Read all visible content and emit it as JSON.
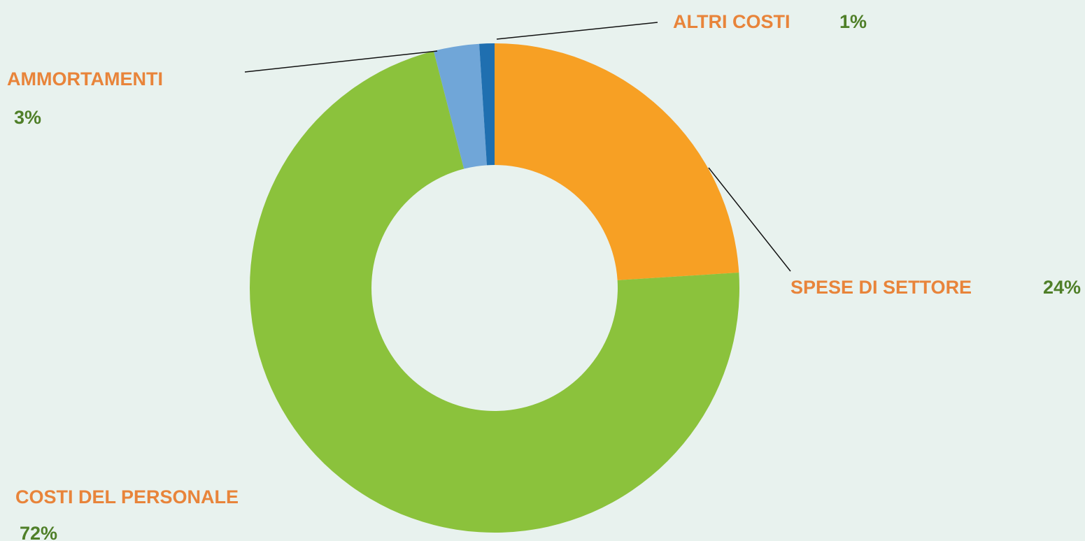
{
  "chart_data": {
    "type": "donut",
    "categories": [
      "SPESE DI SETTORE",
      "COSTI DEL PERSONALE",
      "AMMORTAMENTI",
      "ALTRI  COSTI"
    ],
    "values": [
      24,
      72,
      3,
      1
    ],
    "value_labels": [
      "24%",
      "72%",
      "3%",
      "1%"
    ],
    "colors": [
      "#f7a024",
      "#8bc23c",
      "#70a6d8",
      "#1f6fb0"
    ]
  }
}
